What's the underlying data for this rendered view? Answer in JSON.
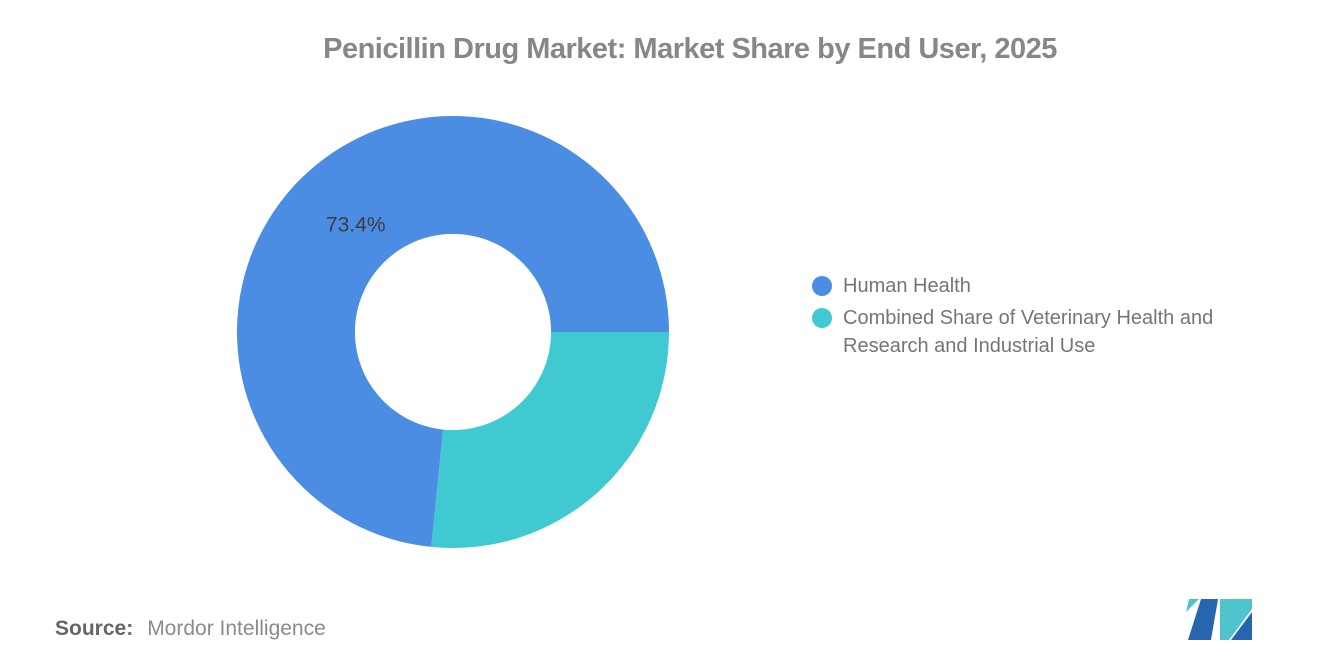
{
  "chart_data": {
    "type": "pie",
    "donut": true,
    "title": "Penicillin Drug Market: Market Share by End User, 2025",
    "inner_radius_ratio": 0.454,
    "start_angle_deg": 90,
    "direction": "counterclockwise",
    "legend_position": "right",
    "label_color": "#3C3C43",
    "series": [
      {
        "name": "Human Health",
        "value": 73.4,
        "color": "#4A8DE2",
        "data_label": "73.4%"
      },
      {
        "name": "Combined Share of Veterinary Health and Research and Industrial Use",
        "value": 26.6,
        "color": "#41C9D2",
        "data_label": ""
      }
    ]
  },
  "source": {
    "label": "Source:",
    "value": "Mordor Intelligence"
  },
  "branding": {
    "logo_icon": "mordor-intelligence-m-mark",
    "logo_blue": "#2766AE",
    "logo_teal": "#4FC4CC"
  }
}
